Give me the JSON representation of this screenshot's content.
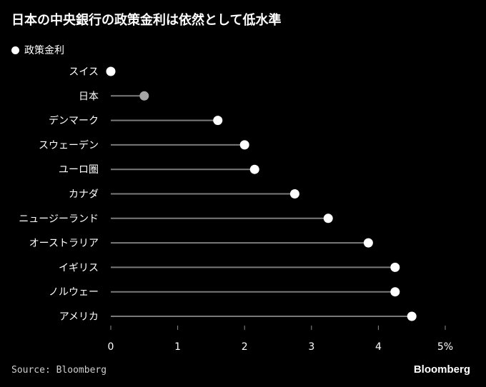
{
  "chart_data": {
    "type": "lollipop",
    "title": "日本の中央銀行の政策金利は依然として低水準",
    "legend_label": "政策金利",
    "source": "Source: Bloomberg",
    "brand": "Bloomberg",
    "categories": [
      "スイス",
      "日本",
      "デンマーク",
      "スウェーデン",
      "ユーロ圏",
      "カナダ",
      "ニュージーランド",
      "オーストラリア",
      "イギリス",
      "ノルウェー",
      "アメリカ"
    ],
    "values": [
      0,
      0.5,
      1.6,
      2.0,
      2.15,
      2.75,
      3.25,
      3.85,
      4.25,
      4.25,
      4.5
    ],
    "highlight": "日本",
    "x_ticks": [
      "0",
      "1",
      "2",
      "3",
      "4",
      "5%"
    ],
    "xlim": [
      0,
      5
    ],
    "colors": {
      "background": "#000000",
      "point": "#ffffff",
      "highlight_point": "#a6a6a6",
      "stem": "#7a7a7a",
      "axis": "#8c8c8c"
    }
  }
}
